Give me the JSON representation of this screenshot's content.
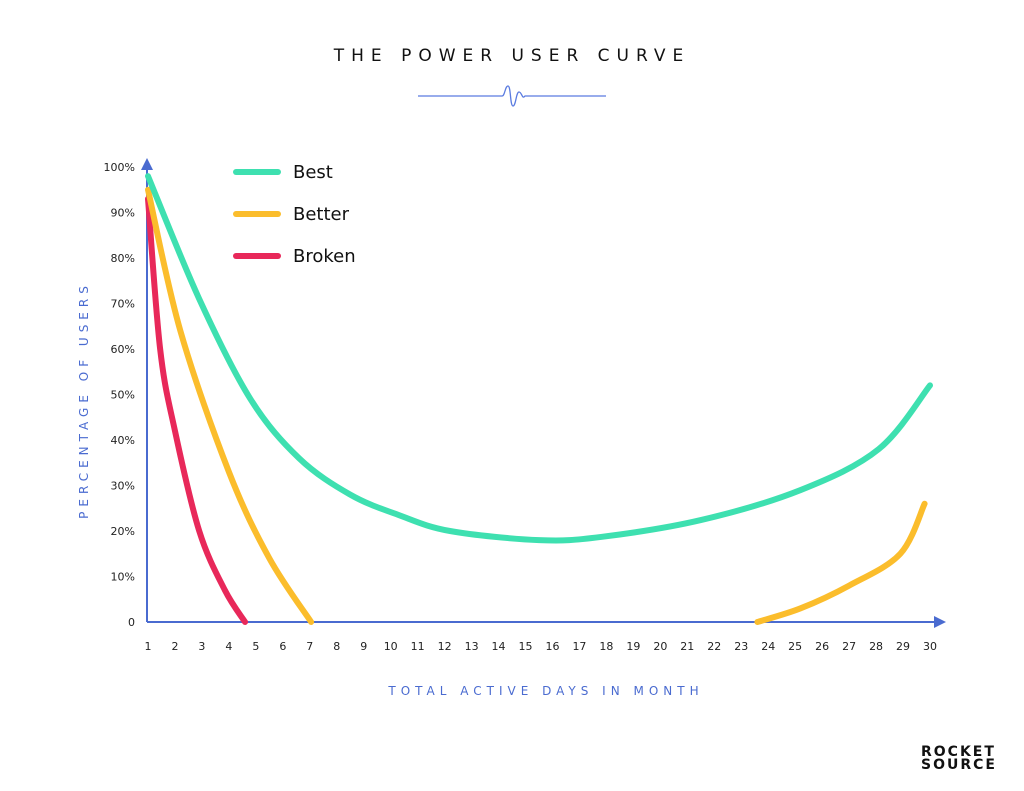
{
  "chart_data": {
    "type": "line",
    "title": "THE POWER USER CURVE",
    "xlabel": "TOTAL ACTIVE DAYS IN MONTH",
    "ylabel": "PERCENTAGE OF USERS",
    "xlim": [
      1,
      30
    ],
    "ylim": [
      0,
      100
    ],
    "x_ticks": [
      "1",
      "2",
      "3",
      "4",
      "5",
      "6",
      "7",
      "8",
      "9",
      "10",
      "11",
      "12",
      "13",
      "14",
      "15",
      "16",
      "17",
      "18",
      "19",
      "20",
      "21",
      "22",
      "23",
      "24",
      "25",
      "26",
      "27",
      "28",
      "29",
      "30"
    ],
    "y_ticks": [
      "0",
      "10%",
      "20%",
      "30%",
      "40%",
      "50%",
      "60%",
      "70%",
      "80%",
      "90%",
      "100%"
    ],
    "grid": false,
    "legend_position": "top-left",
    "series": [
      {
        "name": "Best",
        "color": "#3ee0b0",
        "segments": [
          [
            [
              1,
              98
            ],
            [
              2.9,
              71
            ],
            [
              4.8,
              49
            ],
            [
              6.6,
              36
            ],
            [
              8.5,
              28
            ],
            [
              10.3,
              23.5
            ],
            [
              12.2,
              20
            ],
            [
              15.5,
              18
            ],
            [
              17.8,
              18.7
            ],
            [
              21.5,
              22.4
            ],
            [
              25.2,
              29
            ],
            [
              28.1,
              38
            ],
            [
              30,
              52
            ]
          ]
        ]
      },
      {
        "name": "Better",
        "color": "#fbbd2c",
        "segments": [
          [
            [
              1,
              95
            ],
            [
              2.2,
              64
            ],
            [
              4,
              33
            ],
            [
              5.5,
              14
            ],
            [
              7.05,
              0
            ]
          ],
          [
            [
              23.6,
              0
            ],
            [
              25.2,
              3
            ],
            [
              27,
              8
            ],
            [
              28.9,
              15
            ],
            [
              29.8,
              26
            ]
          ]
        ]
      },
      {
        "name": "Broken",
        "color": "#e8285a",
        "segments": [
          [
            [
              1,
              93
            ],
            [
              1.45,
              60
            ],
            [
              2,
              42
            ],
            [
              2.9,
              20
            ],
            [
              3.85,
              7
            ],
            [
              4.6,
              0
            ]
          ]
        ]
      }
    ]
  },
  "brand": {
    "line1": "ROCKET",
    "line2": "SOURCE",
    "accent": "#3ee0b0"
  }
}
